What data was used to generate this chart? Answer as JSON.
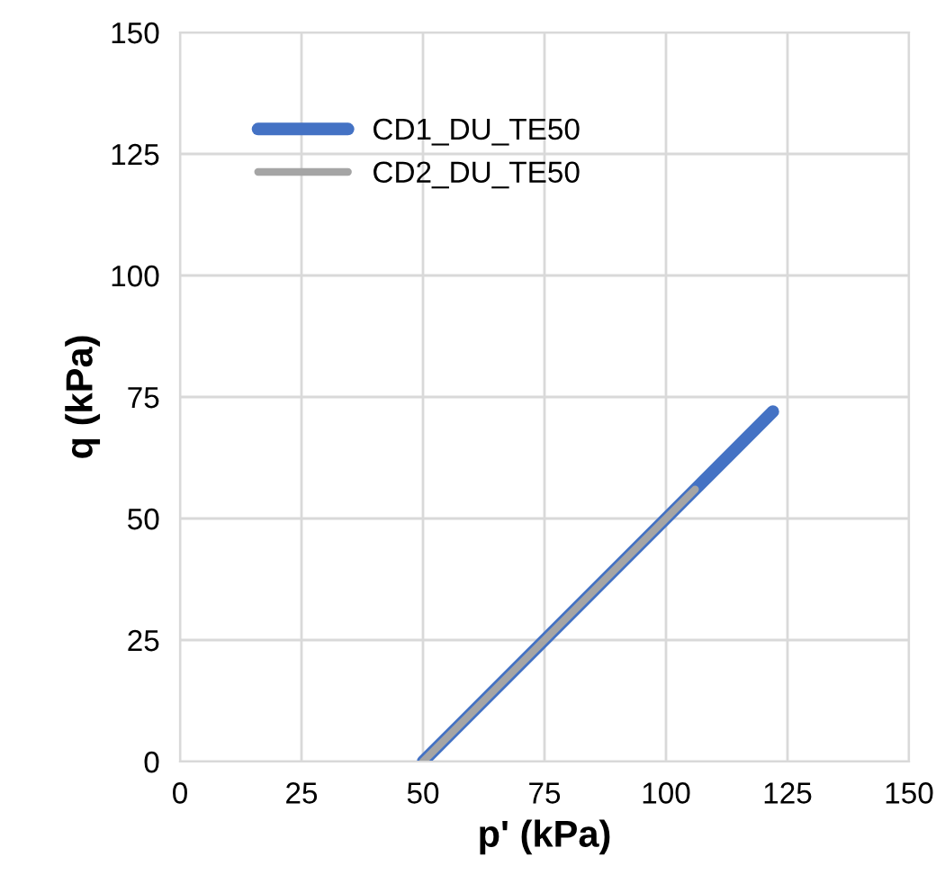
{
  "chart_data": {
    "type": "line",
    "xlabel": "p' (kPa)",
    "ylabel": "q (kPa)",
    "xlim": [
      0,
      150
    ],
    "xticks": [
      0,
      25,
      50,
      75,
      100,
      125,
      150
    ],
    "ylim": [
      0,
      150
    ],
    "yticks": [
      0,
      25,
      50,
      75,
      100,
      125,
      150
    ],
    "grid": true,
    "legend": "top left",
    "marker": "none",
    "line_style": "solid",
    "series": [
      {
        "name": "CD1_DU_TE50",
        "color": "#4472c4",
        "x": [
          50,
          122
        ],
        "values": [
          0,
          72
        ]
      },
      {
        "name": "CD2_DU_TE50",
        "color": "#a5a5a5",
        "x": [
          50,
          106
        ],
        "values": [
          0,
          56
        ]
      }
    ]
  }
}
